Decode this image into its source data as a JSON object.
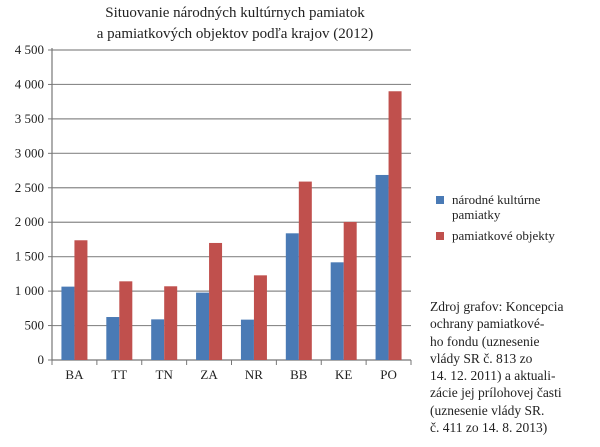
{
  "chart_data": {
    "type": "bar",
    "title": [
      "Situovanie národných kultúrnych pamiatok",
      "a pamiatkových objektov podľa krajov (2012)"
    ],
    "categories": [
      "BA",
      "TT",
      "TN",
      "ZA",
      "NR",
      "BB",
      "KE",
      "PO"
    ],
    "series": [
      {
        "name": "národné kultúrne pamiatky",
        "color": "#4a7ab5",
        "values": [
          1065,
          624,
          590,
          978,
          586,
          1839,
          1418,
          2686
        ]
      },
      {
        "name": "pamiatkové objekty",
        "color": "#c0504d",
        "values": [
          1738,
          1142,
          1070,
          1699,
          1229,
          2590,
          2004,
          3901
        ]
      }
    ],
    "yticks": [
      "0",
      "500",
      "1 000",
      "1 500",
      "2 000",
      "2 500",
      "3 000",
      "3 500",
      "4 000",
      "4 500"
    ],
    "ylim": [
      0,
      4500
    ],
    "ystep": 500,
    "grid": true,
    "legend_position": "right",
    "xlabel": "",
    "ylabel": ""
  },
  "legend": {
    "items": [
      "národné kultúrne pamiatky",
      "pamiatkové objekty"
    ]
  },
  "source_note": [
    "Zdroj grafov: Koncepcia",
    "ochrany pamiatkové-",
    "ho fondu (uznesenie",
    "vlády SR č. 813 zo",
    "14. 12. 2011) a aktuali-",
    "zácie jej prílohovej časti",
    "(uznesenie vlády SR.",
    "č. 411 zo 14. 8. 2013)"
  ]
}
